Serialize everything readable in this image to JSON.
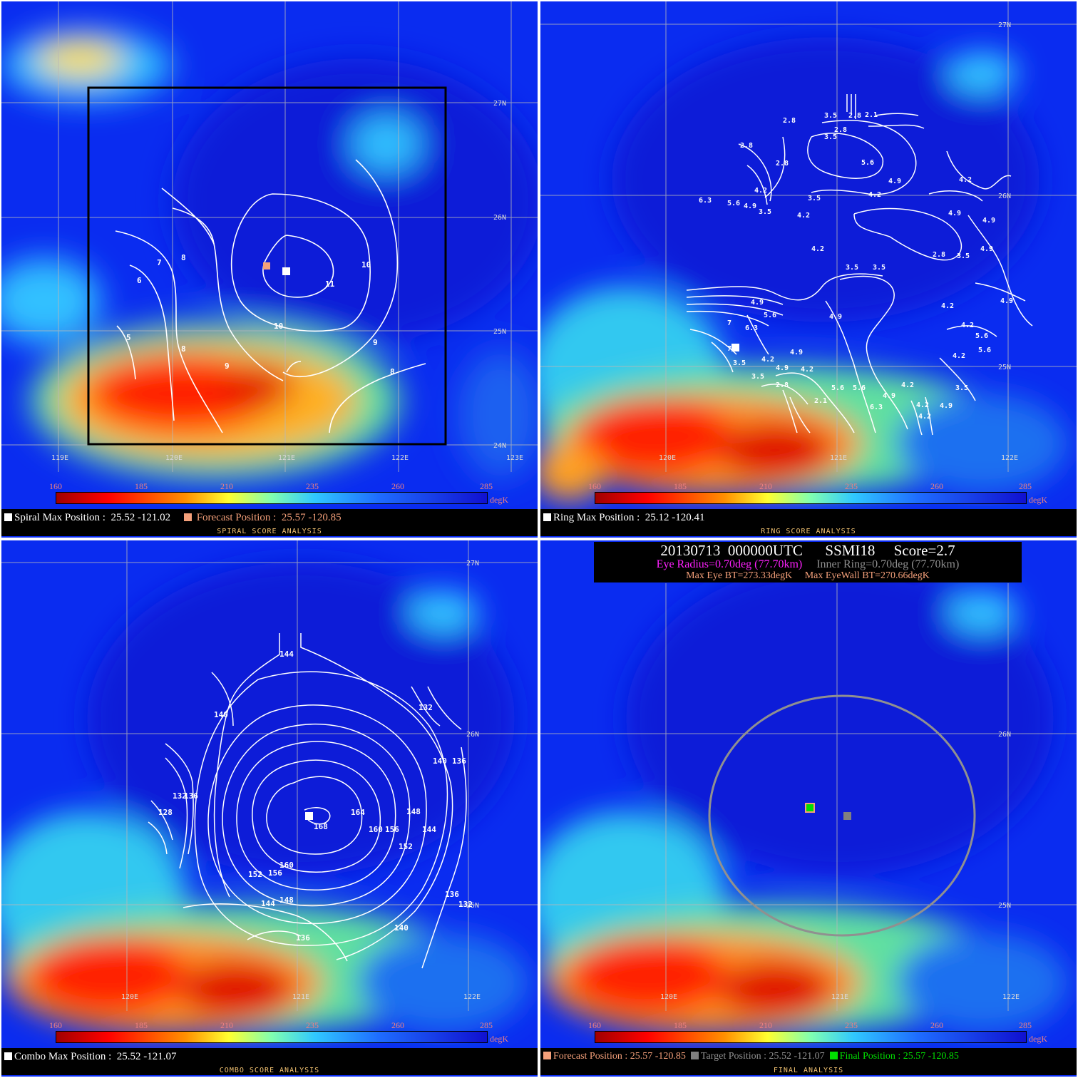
{
  "colors": {
    "white_marker": "#ffffff",
    "forecast_marker": "#f4a07a",
    "target_marker": "#808080",
    "final_marker": "#00e000",
    "contour": "#ffffff",
    "eye_circle": "#909090"
  },
  "colorbar": {
    "ticks": [
      "160",
      "185",
      "210",
      "235",
      "260",
      "285"
    ],
    "unit": "degK"
  },
  "spiral": {
    "title": "SPIRAL SCORE ANALYSIS",
    "max_label": "Spiral Max Position :",
    "max_value": "25.52 -121.02",
    "forecast_label": "Forecast Position :",
    "forecast_value": "25.57 -120.85",
    "lat_labels": [
      "27N",
      "26N",
      "25N",
      "24N"
    ],
    "lon_labels": [
      "119E",
      "120E",
      "121E",
      "122E",
      "123E"
    ],
    "contour_labels": [
      "11",
      "10",
      "10",
      "9",
      "9",
      "8",
      "8",
      "8",
      "7",
      "6",
      "5"
    ]
  },
  "ring": {
    "title": "RING SCORE ANALYSIS",
    "max_label": "Ring Max Position :",
    "max_value": "25.12 -120.41",
    "lat_labels": [
      "27N",
      "26N",
      "25N"
    ],
    "lon_labels": [
      "120E",
      "121E",
      "122E"
    ],
    "contour_labels": [
      "2.8",
      "3.5",
      "2.8",
      "2.1",
      "2.8",
      "3.5",
      "2.8",
      "2.8",
      "5.6",
      "4.9",
      "4.2",
      "4.2",
      "3.5",
      "6.3",
      "5.6",
      "4.9",
      "3.5",
      "4.2",
      "4.2",
      "4.9",
      "4.9",
      "4.2",
      "4.9",
      "2.8",
      "3.5",
      "3.5",
      "3.5",
      "4.9",
      "5.6",
      "4.9",
      "4.2",
      "4.9",
      "7",
      "6.3",
      "7",
      "4.2",
      "4.9",
      "4.2",
      "4.9",
      "3.5",
      "2.8",
      "3.5",
      "5.6",
      "5.6",
      "4.2",
      "4.2",
      "4.2",
      "5.6",
      "5.6",
      "4.2",
      "4.9",
      "4.2",
      "2.1",
      "6.3",
      "3.5",
      "4.9"
    ]
  },
  "combo": {
    "title": "COMBO SCORE ANALYSIS",
    "max_label": "Combo Max Position :",
    "max_value": "25.52 -121.07",
    "lat_labels": [
      "27N",
      "26N",
      "25N"
    ],
    "lon_labels": [
      "120E",
      "121E",
      "122E"
    ],
    "contour_labels": [
      "144",
      "140",
      "132",
      "140",
      "136",
      "132",
      "136",
      "128",
      "164",
      "168",
      "160",
      "156",
      "148",
      "144",
      "152",
      "160",
      "152",
      "156",
      "148",
      "144",
      "136",
      "132",
      "140",
      "136"
    ]
  },
  "final": {
    "title": "FINAL ANALYSIS",
    "forecast_label": "Forecast Position :",
    "forecast_value": "25.57 -120.85",
    "target_label": "Target Position :",
    "target_value": "25.52 -121.07",
    "final_label": "Final Position :",
    "final_value": "25.57 -120.85",
    "lat_labels": [
      "26N",
      "25N"
    ],
    "lon_labels": [
      "120E",
      "121E",
      "122E"
    ],
    "banner": {
      "line1": "20130713  000000UTC      SSMI18     Score=2.7",
      "eye_radius": "Eye Radius=0.70deg (77.70km)",
      "inner_ring": "Inner Ring=0.70deg (77.70km)",
      "max_eye_bt": "Max Eye BT=273.33degK",
      "max_eyewall_bt": "Max EyeWall BT=270.66degK"
    }
  }
}
